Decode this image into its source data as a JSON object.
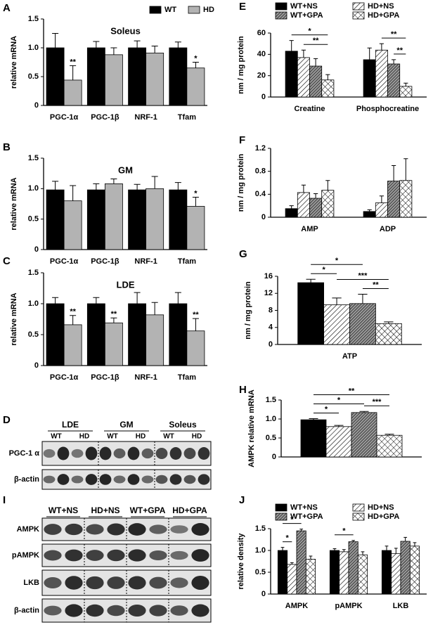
{
  "chart_data": [
    {
      "type": "bar",
      "panel": "A",
      "title": "Soleus",
      "ylabel": "relative mRNA",
      "categories": [
        "PGC-1α",
        "PGC-1β",
        "NRF-1",
        "Tfam"
      ],
      "series": [
        {
          "name": "WT",
          "color": "#000000",
          "pattern": "solid",
          "values": [
            1,
            1,
            1,
            1
          ],
          "errors": [
            0.25,
            0.11,
            0.12,
            0.1
          ]
        },
        {
          "name": "HD",
          "color": "#b3b3b3",
          "pattern": "solid",
          "values": [
            0.44,
            0.88,
            0.91,
            0.65
          ],
          "errors": [
            0.25,
            0.12,
            0.12,
            0.1
          ],
          "sig": [
            "**",
            null,
            null,
            "*"
          ]
        }
      ],
      "ylim": [
        0,
        1.5
      ],
      "yticks": [
        0,
        0.5,
        {
          "value": 1,
          "label": "1.0"
        },
        1.5
      ],
      "legend": "top-right"
    },
    {
      "type": "bar",
      "panel": "B",
      "title": "GM",
      "ylabel": "relative mRNA",
      "categories": [
        "PGC-1α",
        "PGC-1β",
        "NRF-1",
        "Tfam"
      ],
      "series": [
        {
          "color": "#000000",
          "pattern": "solid",
          "values": [
            0.98,
            0.98,
            0.98,
            0.98
          ],
          "errors": [
            0.14,
            0.1,
            0.09,
            0.12
          ]
        },
        {
          "color": "#b3b3b3",
          "pattern": "solid",
          "values": [
            0.8,
            1.08,
            1.0,
            0.71
          ],
          "errors": [
            0.25,
            0.08,
            0.2,
            0.15
          ],
          "sig": [
            null,
            null,
            null,
            "*"
          ]
        }
      ],
      "ylim": [
        0,
        1.5
      ],
      "yticks": [
        0,
        0.5,
        {
          "value": 1,
          "label": "1.0"
        },
        1.5
      ]
    },
    {
      "type": "bar",
      "panel": "C",
      "title": "LDE",
      "ylabel": "relative mRNA",
      "categories": [
        "PGC-1α",
        "PGC-1β",
        "NRF-1",
        "Tfam"
      ],
      "series": [
        {
          "color": "#000000",
          "pattern": "solid",
          "values": [
            1,
            1,
            1,
            1
          ],
          "errors": [
            0.1,
            0.1,
            0.18,
            0.18
          ]
        },
        {
          "color": "#b3b3b3",
          "pattern": "solid",
          "values": [
            0.66,
            0.69,
            0.82,
            0.56
          ],
          "errors": [
            0.15,
            0.08,
            0.2,
            0.2
          ],
          "sig": [
            "**",
            "**",
            null,
            "**"
          ]
        }
      ],
      "ylim": [
        0,
        1.5
      ],
      "yticks": [
        0,
        0.5,
        {
          "value": 1,
          "label": "1.0"
        },
        1.5
      ]
    },
    {
      "type": "bar",
      "panel": "E",
      "ylabel": "nm / mg protein",
      "categories": [
        "Creatine",
        "Phosphocreatine"
      ],
      "series": [
        {
          "name": "WT+NS",
          "color": "#000000",
          "pattern": "solid",
          "values": [
            43,
            35
          ],
          "errors": [
            10,
            11
          ]
        },
        {
          "name": "HD+NS",
          "color": "#000000",
          "pattern": "hatch",
          "values": [
            37,
            44
          ],
          "errors": [
            7,
            6
          ]
        },
        {
          "name": "WT+GPA",
          "color": "#000000",
          "pattern": "dense",
          "values": [
            29,
            31
          ],
          "errors": [
            7,
            4
          ]
        },
        {
          "name": "HD+GPA",
          "color": "#000000",
          "pattern": "cross",
          "values": [
            16,
            10
          ],
          "errors": [
            5,
            3
          ]
        }
      ],
      "comparisons": [
        {
          "category": 0,
          "between": [
            1,
            3
          ],
          "label": "**"
        },
        {
          "category": 0,
          "between": [
            0,
            3
          ],
          "label": "*"
        },
        {
          "category": 1,
          "between": [
            2,
            3
          ],
          "label": "**"
        },
        {
          "category": 1,
          "between": [
            1,
            3
          ],
          "label": "**"
        }
      ],
      "ylim": [
        0,
        60
      ],
      "yticks": [
        0,
        20,
        40,
        60
      ],
      "legend": "top"
    },
    {
      "type": "bar",
      "panel": "F",
      "ylabel": "nm / mg protein",
      "categories": [
        "AMP",
        "ADP"
      ],
      "series": [
        {
          "color": "#000000",
          "pattern": "solid",
          "values": [
            0.15,
            0.1
          ],
          "errors": [
            0.05,
            0.03
          ]
        },
        {
          "color": "#000000",
          "pattern": "hatch",
          "values": [
            0.43,
            0.25
          ],
          "errors": [
            0.13,
            0.12
          ]
        },
        {
          "color": "#000000",
          "pattern": "dense",
          "values": [
            0.33,
            0.63
          ],
          "errors": [
            0.08,
            0.27
          ]
        },
        {
          "color": "#000000",
          "pattern": "cross",
          "values": [
            0.47,
            0.64
          ],
          "errors": [
            0.17,
            0.38
          ]
        }
      ],
      "ylim": [
        0,
        1.2
      ],
      "yticks": [
        0,
        0.4,
        0.8,
        1.2
      ]
    },
    {
      "type": "bar",
      "panel": "G",
      "ylabel": "nm / mg protein",
      "categories": [
        "ATP"
      ],
      "series": [
        {
          "color": "#000000",
          "pattern": "solid",
          "values": [
            14.5
          ],
          "errors": [
            0.8
          ]
        },
        {
          "color": "#000000",
          "pattern": "hatch",
          "values": [
            9.3
          ],
          "errors": [
            1.6
          ]
        },
        {
          "color": "#000000",
          "pattern": "dense",
          "values": [
            9.6
          ],
          "errors": [
            2.2
          ]
        },
        {
          "color": "#000000",
          "pattern": "cross",
          "values": [
            4.9
          ],
          "errors": [
            0.4
          ]
        }
      ],
      "comparisons": [
        {
          "category": 0,
          "between": [
            0,
            1
          ],
          "label": "*"
        },
        {
          "category": 0,
          "between": [
            2,
            3
          ],
          "label": "**"
        },
        {
          "category": 0,
          "between": [
            1,
            3
          ],
          "label": "***"
        },
        {
          "category": 0,
          "between": [
            0,
            2
          ],
          "label": "*"
        }
      ],
      "ylim": [
        0,
        16
      ],
      "yticks": [
        0,
        4,
        8,
        12,
        16
      ]
    },
    {
      "type": "bar",
      "panel": "H",
      "ylabel": "AMPK relative mRNA",
      "categories": [
        null
      ],
      "series": [
        {
          "color": "#000000",
          "pattern": "solid",
          "values": [
            0.98
          ],
          "errors": [
            0.03
          ]
        },
        {
          "color": "#000000",
          "pattern": "hatch",
          "values": [
            0.8
          ],
          "errors": [
            0.03
          ]
        },
        {
          "color": "#000000",
          "pattern": "dense",
          "values": [
            1.17
          ],
          "errors": [
            0.03
          ]
        },
        {
          "color": "#000000",
          "pattern": "cross",
          "values": [
            0.57
          ],
          "errors": [
            0.03
          ]
        }
      ],
      "comparisons": [
        {
          "category": 0,
          "between": [
            0,
            1
          ],
          "label": "*"
        },
        {
          "category": 0,
          "between": [
            2,
            3
          ],
          "label": "***"
        },
        {
          "category": 0,
          "between": [
            0,
            2
          ],
          "label": "*"
        },
        {
          "category": 0,
          "between": [
            0,
            3
          ],
          "label": "**"
        }
      ],
      "ylim": [
        0,
        1.5
      ],
      "yticks": [
        0,
        0.5,
        {
          "value": 1,
          "label": "1.0"
        },
        1.5
      ]
    },
    {
      "type": "bar",
      "panel": "J",
      "ylabel": "relative density",
      "categories": [
        "AMPK",
        "pAMPK",
        "LKB"
      ],
      "series": [
        {
          "name": "WT+NS",
          "color": "#000000",
          "pattern": "solid",
          "values": [
            1.0,
            1.0,
            1.0
          ],
          "errors": [
            0.07,
            0.04,
            0.1
          ]
        },
        {
          "name": "HD+NS",
          "color": "#000000",
          "pattern": "hatch",
          "values": [
            0.68,
            0.97,
            0.93
          ],
          "errors": [
            0.04,
            0.05,
            0.12
          ]
        },
        {
          "name": "WT+GPA",
          "color": "#000000",
          "pattern": "dense",
          "values": [
            1.45,
            1.2,
            1.21
          ],
          "errors": [
            0.04,
            0.03,
            0.09
          ]
        },
        {
          "name": "HD+GPA",
          "color": "#000000",
          "pattern": "cross",
          "values": [
            0.8,
            0.9,
            1.1
          ],
          "errors": [
            0.07,
            0.07,
            0.08
          ]
        }
      ],
      "comparisons": [
        {
          "category": 0,
          "between": [
            0,
            1
          ],
          "label": "*"
        },
        {
          "category": 0,
          "between": [
            0,
            2
          ],
          "label": "*"
        },
        {
          "category": 1,
          "between": [
            0,
            2
          ],
          "label": "*"
        }
      ],
      "ylim": [
        0,
        1.5
      ],
      "yticks": [
        0,
        0.5,
        {
          "value": 1,
          "label": "1.0"
        },
        1.5
      ],
      "legend": "top"
    }
  ],
  "blots": [
    {
      "panel": "D",
      "groups": [
        {
          "label": "LDE",
          "lanes": [
            "WT",
            "HD"
          ]
        },
        {
          "label": "GM",
          "lanes": [
            "WT",
            "HD"
          ]
        },
        {
          "label": "Soleus",
          "lanes": [
            "WT",
            "HD"
          ]
        }
      ],
      "rows": [
        "PGC-1 α",
        "β-actin"
      ]
    },
    {
      "panel": "I",
      "groups": [
        {
          "label": "WT+NS"
        },
        {
          "label": "HD+NS"
        },
        {
          "label": "WT+GPA"
        },
        {
          "label": "HD+GPA"
        }
      ],
      "rows": [
        "AMPK",
        "pAMPK",
        "LKB",
        "β-actin"
      ]
    }
  ]
}
